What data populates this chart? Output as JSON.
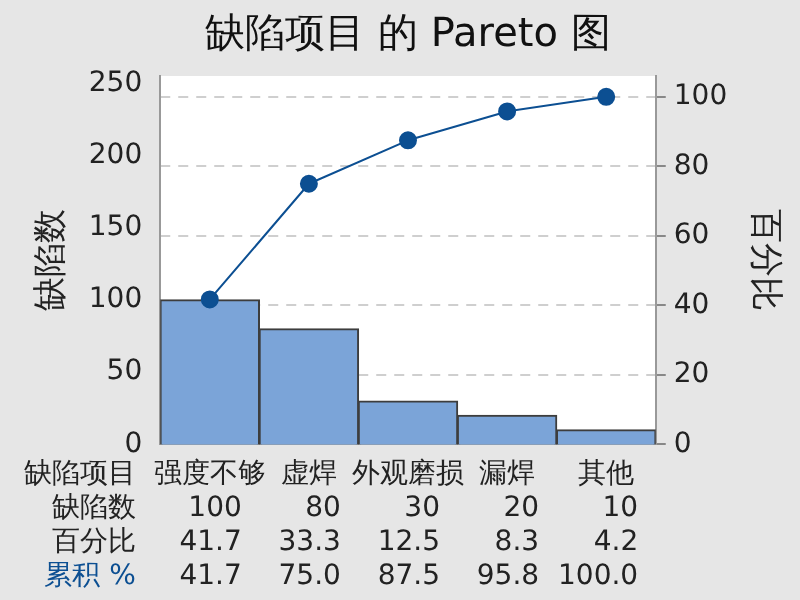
{
  "chart_data": {
    "type": "bar",
    "title": "缺陷项目 的 Pareto 图",
    "xlabel": "缺陷项目",
    "ylabel": "缺陷数",
    "y2label": "百分比",
    "categories": [
      "强度不够",
      "虚焊",
      "外观磨损",
      "漏焊",
      "其他"
    ],
    "series": [
      {
        "name": "缺陷数",
        "color": "#7ba4d8",
        "values": [
          100,
          80,
          30,
          20,
          10
        ],
        "value_labels": [
          "100",
          "80",
          "30",
          "20",
          "10"
        ]
      },
      {
        "name": "累积 %",
        "type": "line",
        "axis": "y2",
        "color": "#0c4f92",
        "values": [
          41.7,
          75.0,
          87.5,
          95.8,
          100
        ],
        "value_labels": [
          "41.7",
          "75.0",
          "87.5",
          "95.8",
          "100.0"
        ]
      }
    ],
    "annotations": [
      "百分比",
      "41.7",
      "33.3",
      "12.5",
      "8.3",
      "4.2"
    ],
    "ylim": [
      0,
      255
    ],
    "yticks": [
      0,
      50,
      100,
      150,
      200,
      250
    ],
    "y2lim": [
      0,
      106
    ],
    "y2ticks": [
      0,
      20,
      40,
      60,
      80,
      100
    ],
    "grid": "y",
    "legend": false,
    "marker": "circle",
    "line_style": "solid"
  }
}
